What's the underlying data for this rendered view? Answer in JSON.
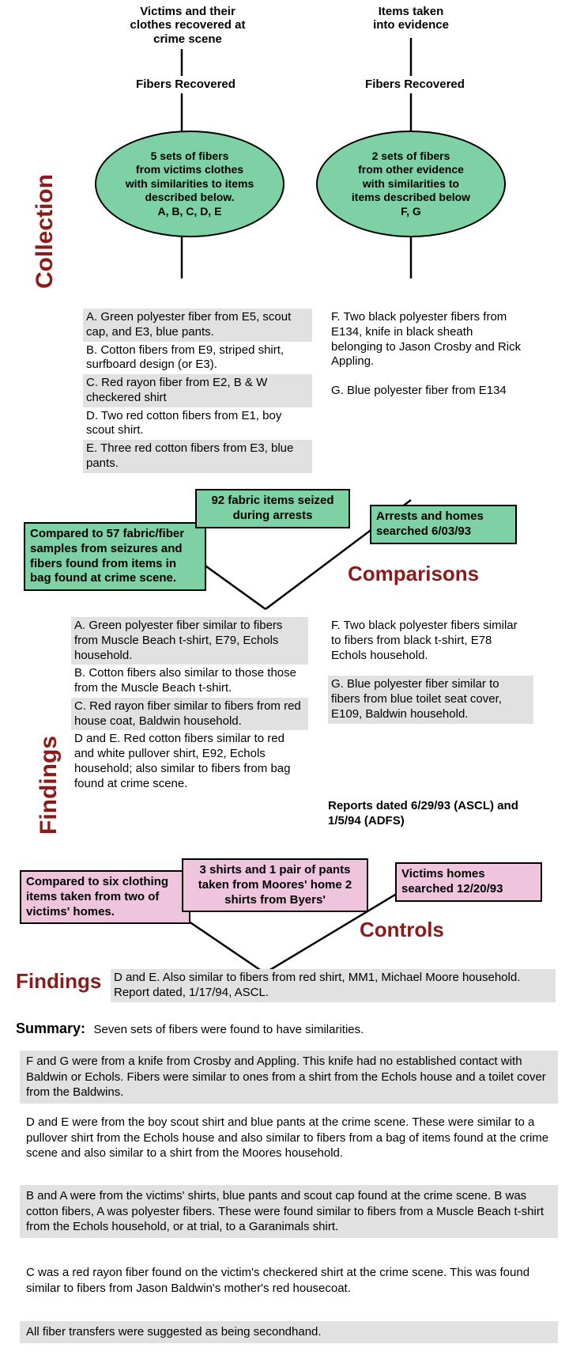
{
  "colors": {
    "dark_red": "#8b1a1a",
    "green_fill": "#7ed1a4",
    "pink_fill": "#efc5de",
    "gray_fill": "#e1e1e1",
    "text": "#000000",
    "line": "#000000"
  },
  "top": {
    "left_src": "Victims and their\nclothes recovered at\ncrime scene",
    "right_src": "Items taken\ninto evidence",
    "left_mid": "Fibers Recovered",
    "right_mid": "Fibers Recovered"
  },
  "side_labels": {
    "collection": "Collection",
    "findings": "Findings",
    "comparisons": "Comparisons",
    "controls": "Controls",
    "findings2": "Findings"
  },
  "ellipses": {
    "left": "5 sets of fibers\nfrom victims clothes\nwith similarities to items\ndescribed below.\nA, B, C, D, E",
    "right": "2 sets of fibers\nfrom other evidence\nwith similarities to\nitems described below\nF, G"
  },
  "left_items": [
    "A. Green polyester fiber from E5, scout cap, and E3, blue pants.",
    "B. Cotton fibers from E9, striped shirt, surfboard design (or E3).",
    "C.  Red rayon fiber from E2, B & W checkered shirt",
    "D.  Two red cotton fibers from E1, boy scout shirt.",
    "E.  Three red cotton fibers from E3, blue pants."
  ],
  "right_items": [
    "F.  Two black polyester fibers from E134, knife in black sheath belonging to Jason Crosby and Rick Appling.",
    "G.  Blue polyester fiber from E134"
  ],
  "green_boxes": {
    "left": "Compared to 57 fabric/fiber samples from seizures and fibers found from items in bag found at crime scene.",
    "center": "92 fabric items seized during arrests",
    "right": "Arrests and homes searched 6/03/93"
  },
  "findings_left": [
    "A. Green polyester fiber similar to fibers from Muscle Beach t-shirt, E79, Echols household.",
    "B.  Cotton fibers also similar to those those from the Muscle Beach t-shirt.",
    "C.  Red rayon fiber similar to fibers from red house coat, Baldwin household.",
    "D and E.  Red cotton fibers similar to red and white pullover shirt, E92, Echols household; also similar to fibers from bag found at crime scene."
  ],
  "findings_right": [
    "F.  Two black polyester fibers similar to fibers from black t-shirt, E78 Echols household.",
    "G.  Blue polyester fiber similar to fibers from blue toilet seat cover, E109, Baldwin household."
  ],
  "reports": "Reports dated 6/29/93 (ASCL) and 1/5/94 (ADFS)",
  "pink_boxes": {
    "left": "Compared to six clothing items taken from two of victims' homes.",
    "center": "3 shirts and 1 pair of pants taken from Moores' home 2 shirts from Byers'",
    "right": "Victims homes searched 12/20/93"
  },
  "findings2_text": "D and E.  Also similar to fibers from red shirt, MM1, Michael Moore household.  Report dated, 1/17/94, ASCL.",
  "summary": {
    "label": "Summary:",
    "intro": "Seven sets of fibers were found to have similarities.",
    "blocks": [
      "F and G  were from a knife from Crosby and Appling.  This knife had no established contact with Baldwin or Echols.  Fibers were similar to ones from a shirt from the Echols house and a toilet cover from the Baldwins.",
      "D and E were from the boy scout shirt and blue pants at the crime scene.  These were similar to a pullover shirt from the Echols house and also similar to fibers from a bag of items found at the crime scene and also similar to a shirt from the Moores household.",
      "B and A were from the victims' shirts, blue pants and scout cap found at the crime scene.   B was cotton fibers, A was polyester fibers.   These were found similar to fibers from a Muscle Beach t-shirt from the Echols household, or at trial, to a Garanimals shirt.",
      "C was a red rayon fiber found on the victim's checkered shirt at the crime scene.  This was found similar to fibers from Jason Baldwin's mother's red housecoat.",
      "All fiber transfers were suggested as being secondhand."
    ]
  }
}
